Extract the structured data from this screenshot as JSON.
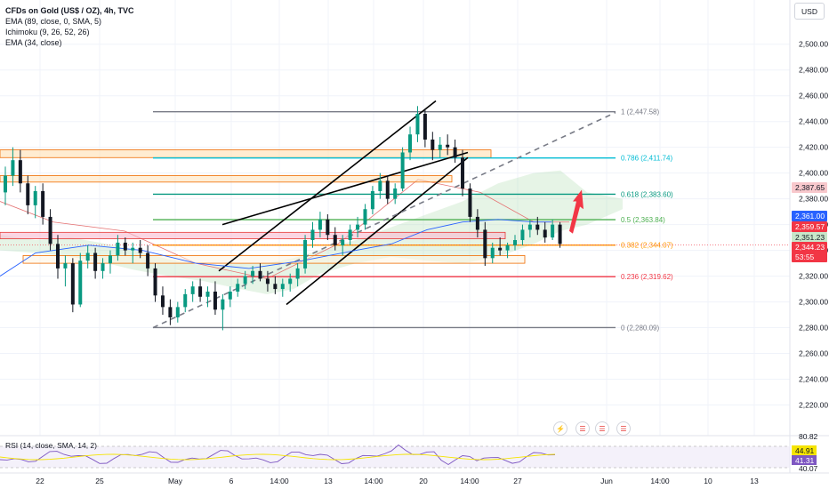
{
  "header": {
    "title": "CFDs on Gold (US$ / OZ), 4h, TVC",
    "indicators": [
      "EMA (89, close, 0, SMA, 5)",
      "Ichimoku (9, 26, 52, 26)",
      "EMA (34, close)"
    ],
    "currency": "USD"
  },
  "rsi": {
    "label": "RSI (14, close, SMA, 14, 2)",
    "axis_labels": [
      "80.82",
      "40.07"
    ],
    "tags": [
      {
        "text": "44.91",
        "color": "#f5e400"
      },
      {
        "text": "41.31",
        "color": "#7e57c2"
      }
    ]
  },
  "chart_data": {
    "type": "candlestick",
    "title": "CFDs on Gold (US$ / OZ), 4h, TVC",
    "ylim": [
      2210,
      2515
    ],
    "yticks": [
      2220,
      2240,
      2260,
      2280,
      2300,
      2320,
      2340,
      2360,
      2380,
      2400,
      2420,
      2440,
      2460,
      2480,
      2500
    ],
    "ytick_labels": [
      "2,220.00",
      "2,240.00",
      "2,260.00",
      "2,280.00",
      "2,300.00",
      "2,320.00",
      "2,340.00",
      "2,360.00",
      "2,380.00",
      "2,400.00",
      "2,420.00",
      "2,440.00",
      "2,460.00",
      "2,480.00",
      "2,500.00"
    ],
    "xticks": [
      "22",
      "25",
      "May",
      "6",
      "14:00",
      "13",
      "14:00",
      "20",
      "14:00",
      "27",
      "Jun",
      "14:00",
      "10",
      "13"
    ],
    "fib_levels": [
      {
        "ratio": "1",
        "price": 2447.58,
        "label": "1 (2,447.58)",
        "color": "#787b86"
      },
      {
        "ratio": "0.786",
        "price": 2411.74,
        "label": "0.786 (2,411.74)",
        "color": "#00bcd4"
      },
      {
        "ratio": "0.618",
        "price": 2383.6,
        "label": "0.618 (2,383.60)",
        "color": "#089981"
      },
      {
        "ratio": "0.5",
        "price": 2363.84,
        "label": "0.5 (2,363.84)",
        "color": "#4caf50"
      },
      {
        "ratio": "0.382",
        "price": 2344.07,
        "label": "0.382 (2,344.07)",
        "color": "#ff9800"
      },
      {
        "ratio": "0.236",
        "price": 2319.62,
        "label": "0.236 (2,319.62)",
        "color": "#f23645"
      },
      {
        "ratio": "0",
        "price": 2280.09,
        "label": "0 (2,280.09)",
        "color": "#787b86"
      }
    ],
    "price_tags": [
      {
        "text": "2,387.65",
        "bg": "#f8c8cc",
        "dark": true
      },
      {
        "text": "2,361.00",
        "bg": "#2962ff",
        "dark": false
      },
      {
        "text": "2,359.57",
        "bg": "#f23645",
        "dark": false
      },
      {
        "text": "2,351.23",
        "bg": "#c8e6c9",
        "dark": true
      },
      {
        "text": "2,344.23",
        "bg": "#f23645",
        "dark": false
      },
      {
        "text": "53:55",
        "bg": "#f23645",
        "dark": false
      }
    ],
    "candles": [
      [
        2385,
        2405,
        2375,
        2398
      ],
      [
        2398,
        2420,
        2390,
        2410
      ],
      [
        2410,
        2418,
        2385,
        2392
      ],
      [
        2392,
        2398,
        2368,
        2375
      ],
      [
        2375,
        2390,
        2365,
        2386
      ],
      [
        2386,
        2392,
        2360,
        2366
      ],
      [
        2366,
        2372,
        2340,
        2345
      ],
      [
        2345,
        2352,
        2318,
        2326
      ],
      [
        2326,
        2336,
        2312,
        2330
      ],
      [
        2330,
        2334,
        2292,
        2298
      ],
      [
        2298,
        2338,
        2296,
        2332
      ],
      [
        2332,
        2344,
        2326,
        2338
      ],
      [
        2338,
        2342,
        2318,
        2324
      ],
      [
        2324,
        2334,
        2318,
        2330
      ],
      [
        2330,
        2340,
        2322,
        2336
      ],
      [
        2336,
        2352,
        2332,
        2346
      ],
      [
        2346,
        2350,
        2336,
        2340
      ],
      [
        2340,
        2346,
        2330,
        2342
      ],
      [
        2342,
        2348,
        2334,
        2338
      ],
      [
        2338,
        2344,
        2320,
        2326
      ],
      [
        2326,
        2330,
        2300,
        2305
      ],
      [
        2305,
        2312,
        2290,
        2296
      ],
      [
        2296,
        2302,
        2282,
        2288
      ],
      [
        2288,
        2300,
        2284,
        2296
      ],
      [
        2296,
        2310,
        2292,
        2306
      ],
      [
        2306,
        2316,
        2300,
        2312
      ],
      [
        2312,
        2318,
        2300,
        2304
      ],
      [
        2304,
        2312,
        2296,
        2308
      ],
      [
        2308,
        2316,
        2290,
        2294
      ],
      [
        2294,
        2306,
        2278,
        2302
      ],
      [
        2302,
        2312,
        2296,
        2308
      ],
      [
        2308,
        2318,
        2304,
        2314
      ],
      [
        2314,
        2324,
        2310,
        2320
      ],
      [
        2320,
        2328,
        2314,
        2324
      ],
      [
        2324,
        2330,
        2316,
        2318
      ],
      [
        2318,
        2324,
        2308,
        2314
      ],
      [
        2314,
        2320,
        2306,
        2310
      ],
      [
        2310,
        2318,
        2304,
        2314
      ],
      [
        2314,
        2322,
        2308,
        2318
      ],
      [
        2318,
        2330,
        2312,
        2326
      ],
      [
        2326,
        2352,
        2322,
        2348
      ],
      [
        2348,
        2362,
        2342,
        2356
      ],
      [
        2356,
        2370,
        2350,
        2364
      ],
      [
        2364,
        2368,
        2348,
        2352
      ],
      [
        2352,
        2358,
        2340,
        2344
      ],
      [
        2344,
        2352,
        2336,
        2348
      ],
      [
        2348,
        2360,
        2344,
        2356
      ],
      [
        2356,
        2366,
        2350,
        2360
      ],
      [
        2360,
        2376,
        2356,
        2372
      ],
      [
        2372,
        2390,
        2368,
        2386
      ],
      [
        2386,
        2400,
        2380,
        2394
      ],
      [
        2394,
        2398,
        2376,
        2380
      ],
      [
        2380,
        2392,
        2376,
        2388
      ],
      [
        2388,
        2420,
        2386,
        2416
      ],
      [
        2416,
        2436,
        2410,
        2430
      ],
      [
        2430,
        2452,
        2424,
        2446
      ],
      [
        2446,
        2450,
        2420,
        2426
      ],
      [
        2426,
        2432,
        2410,
        2418
      ],
      [
        2418,
        2428,
        2412,
        2422
      ],
      [
        2422,
        2430,
        2414,
        2420
      ],
      [
        2420,
        2426,
        2408,
        2412
      ],
      [
        2412,
        2418,
        2382,
        2388
      ],
      [
        2388,
        2392,
        2362,
        2366
      ],
      [
        2366,
        2372,
        2350,
        2356
      ],
      [
        2356,
        2362,
        2328,
        2334
      ],
      [
        2334,
        2346,
        2330,
        2342
      ],
      [
        2342,
        2350,
        2336,
        2340
      ],
      [
        2340,
        2346,
        2334,
        2344
      ],
      [
        2344,
        2352,
        2340,
        2348
      ],
      [
        2348,
        2360,
        2344,
        2356
      ],
      [
        2356,
        2364,
        2350,
        2360
      ],
      [
        2360,
        2366,
        2352,
        2356
      ],
      [
        2356,
        2362,
        2346,
        2350
      ],
      [
        2350,
        2364,
        2348,
        2360
      ],
      [
        2360,
        2362,
        2342,
        2345
      ]
    ]
  }
}
